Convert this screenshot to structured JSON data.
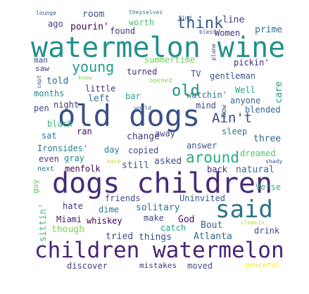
{
  "word_cloud": {
    "words": [
      {
        "text": "old dogs",
        "color": "#3b4f8a"
      },
      {
        "text": "watermelon wine",
        "color": "#21908d"
      },
      {
        "text": "dogs children",
        "color": "#472a7a"
      },
      {
        "text": "children watermelon",
        "color": "#482475"
      },
      {
        "text": "said",
        "color": "#2c728e"
      },
      {
        "text": "around",
        "color": "#27ad81"
      },
      {
        "text": "Ain't",
        "color": "#3e4a89"
      },
      {
        "text": "old",
        "color": "#21918c"
      },
      {
        "text": "young",
        "color": "#1f9e89"
      },
      {
        "text": "think",
        "color": "#365c8d"
      },
      {
        "text": "room",
        "color": "#3b528b"
      },
      {
        "text": "pourin'",
        "color": "#440154"
      },
      {
        "text": "worth",
        "color": "#4ac16d"
      },
      {
        "text": "found",
        "color": "#46337f"
      },
      {
        "text": "line",
        "color": "#433e85"
      },
      {
        "text": "Women",
        "color": "#482878"
      },
      {
        "text": "prime",
        "color": "#2e6f8e"
      },
      {
        "text": "ago",
        "color": "#443a83"
      },
      {
        "text": "man",
        "color": "#3e4989"
      },
      {
        "text": "saw",
        "color": "#414487"
      },
      {
        "text": "told",
        "color": "#31688e"
      },
      {
        "text": "summertime",
        "color": "#6ccd5a"
      },
      {
        "text": "turned",
        "color": "#472d7b"
      },
      {
        "text": "TV",
        "color": "#3b528b"
      },
      {
        "text": "pickin'",
        "color": "#482878"
      },
      {
        "text": "gentleman",
        "color": "#39568c"
      },
      {
        "text": "little",
        "color": "#46327e"
      },
      {
        "text": "months",
        "color": "#26828e"
      },
      {
        "text": "left",
        "color": "#2c728e"
      },
      {
        "text": "bar",
        "color": "#20a386"
      },
      {
        "text": "watchin'",
        "color": "#2a788e"
      },
      {
        "text": "Well",
        "color": "#22a785"
      },
      {
        "text": "anyone",
        "color": "#34618d"
      },
      {
        "text": "pen",
        "color": "#3e4989"
      },
      {
        "text": "night",
        "color": "#46337f"
      },
      {
        "text": "mind",
        "color": "#3f4788"
      },
      {
        "text": "blended",
        "color": "#31688e"
      },
      {
        "text": "black",
        "color": "#35b779"
      },
      {
        "text": "care",
        "color": "#1f9a8a"
      },
      {
        "text": "ran",
        "color": "#440154"
      },
      {
        "text": "change",
        "color": "#453781"
      },
      {
        "text": "away",
        "color": "#404688"
      },
      {
        "text": "sleep",
        "color": "#2a788e"
      },
      {
        "text": "three",
        "color": "#33638d"
      },
      {
        "text": "sat",
        "color": "#2a778e"
      },
      {
        "text": "Ironsides'",
        "color": "#277f8e"
      },
      {
        "text": "day",
        "color": "#287c8e"
      },
      {
        "text": "copied",
        "color": "#3e4989"
      },
      {
        "text": "answer",
        "color": "#3b528b"
      },
      {
        "text": "dreamed",
        "color": "#52c569"
      },
      {
        "text": "even",
        "color": "#443b84"
      },
      {
        "text": "gray",
        "color": "#25838e"
      },
      {
        "text": "asked",
        "color": "#3b528b"
      },
      {
        "text": "still",
        "color": "#39558c"
      },
      {
        "text": "back",
        "color": "#482475"
      },
      {
        "text": "natural",
        "color": "#2d708e"
      },
      {
        "text": "menfolk",
        "color": "#440154"
      },
      {
        "text": "next",
        "color": "#2c728e"
      },
      {
        "text": "guy",
        "color": "#5ec962"
      },
      {
        "text": "friends",
        "color": "#3f4889"
      },
      {
        "text": "Uninvited",
        "color": "#3b528b"
      },
      {
        "text": "Verse",
        "color": "#35b779"
      },
      {
        "text": "hate",
        "color": "#453882"
      },
      {
        "text": "dime",
        "color": "#2a788e"
      },
      {
        "text": "solitary",
        "color": "#2c728e"
      },
      {
        "text": "whiskey",
        "color": "#440154"
      },
      {
        "text": "make",
        "color": "#3f4788"
      },
      {
        "text": "God",
        "color": "#471063"
      },
      {
        "text": "Miami",
        "color": "#482071"
      },
      {
        "text": "though",
        "color": "#7ad151"
      },
      {
        "text": "catch",
        "color": "#20a486"
      },
      {
        "text": "Bout",
        "color": "#33638d"
      },
      {
        "text": "drink",
        "color": "#404688"
      },
      {
        "text": "sittin'",
        "color": "#3dbc74"
      },
      {
        "text": "tried",
        "color": "#3e4989"
      },
      {
        "text": "things",
        "color": "#3b528b"
      },
      {
        "text": "Atlanta",
        "color": "#31688e"
      },
      {
        "text": "discover",
        "color": "#433e85"
      },
      {
        "text": "mistakes",
        "color": "#46337f"
      },
      {
        "text": "moved",
        "color": "#3b528b"
      },
      {
        "text": "peaceful",
        "color": "#fde725"
      },
      {
        "text": "lounge",
        "color": "#39568c"
      },
      {
        "text": "theyselves",
        "color": "#2a788e"
      },
      {
        "text": "find",
        "color": "#33638d"
      },
      {
        "text": "bless",
        "color": "#3e4989"
      },
      {
        "text": "plane",
        "color": "#453781"
      },
      {
        "text": "know",
        "color": "#75d054"
      },
      {
        "text": "opened",
        "color": "#8fd744"
      },
      {
        "text": "cept",
        "color": "#3a548c"
      },
      {
        "text": "world",
        "color": "#2c728e"
      },
      {
        "text": "Now",
        "color": "#3b528b"
      },
      {
        "text": "hard",
        "color": "#b5de2b"
      },
      {
        "text": "shady",
        "color": "#39568c"
      },
      {
        "text": "cleanin'",
        "color": "#b8de29"
      }
    ]
  }
}
